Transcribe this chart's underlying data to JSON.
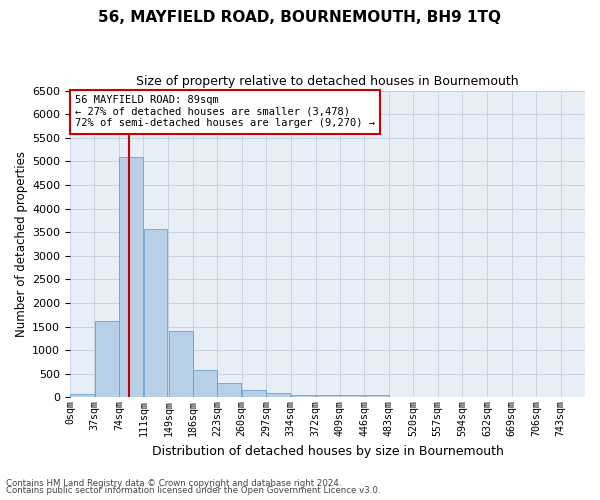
{
  "title": "56, MAYFIELD ROAD, BOURNEMOUTH, BH9 1TQ",
  "subtitle": "Size of property relative to detached houses in Bournemouth",
  "xlabel": "Distribution of detached houses by size in Bournemouth",
  "ylabel": "Number of detached properties",
  "bar_labels": [
    "0sqm",
    "37sqm",
    "74sqm",
    "111sqm",
    "149sqm",
    "186sqm",
    "223sqm",
    "260sqm",
    "297sqm",
    "334sqm",
    "372sqm",
    "409sqm",
    "446sqm",
    "483sqm",
    "520sqm",
    "557sqm",
    "594sqm",
    "632sqm",
    "669sqm",
    "706sqm",
    "743sqm"
  ],
  "bar_values": [
    75,
    1620,
    5100,
    3570,
    1400,
    590,
    300,
    155,
    90,
    55,
    55,
    60,
    60,
    0,
    0,
    0,
    0,
    0,
    0,
    0,
    0
  ],
  "bar_color": "#b8cfe8",
  "bar_edge_color": "#6aa0cc",
  "grid_color": "#c8d4e4",
  "background_color": "#e8eef6",
  "annotation_line1": "56 MAYFIELD ROAD: 89sqm",
  "annotation_line2": "← 27% of detached houses are smaller (3,478)",
  "annotation_line3": "72% of semi-detached houses are larger (9,270) →",
  "annotation_box_edge": "#cc0000",
  "vline_color": "#cc0000",
  "vline_x_data": 89,
  "ylim_max": 6500,
  "bin_width": 37,
  "footer_line1": "Contains HM Land Registry data © Crown copyright and database right 2024.",
  "footer_line2": "Contains public sector information licensed under the Open Government Licence v3.0."
}
